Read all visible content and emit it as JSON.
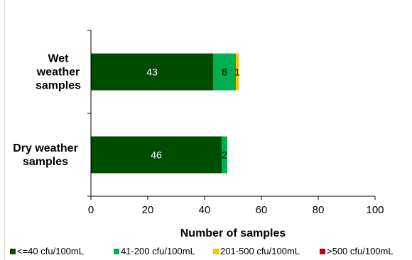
{
  "chart_data": {
    "type": "bar",
    "orientation": "horizontal",
    "stacked": true,
    "categories": [
      "Wet weather samples",
      "Dry weather samples"
    ],
    "category_label_lines": [
      [
        "Wet",
        "weather",
        "samples"
      ],
      [
        "Dry weather",
        "samples"
      ]
    ],
    "series": [
      {
        "name": "<=40 cfu/100mL",
        "color": "#004d00",
        "values": [
          43,
          46
        ],
        "labels": [
          "43",
          "46"
        ],
        "label_color": "#ffffff"
      },
      {
        "name": "41-200 cfu/100mL",
        "color": "#00b050",
        "values": [
          8,
          2
        ],
        "labels": [
          "8",
          "2"
        ],
        "label_color": "#000000"
      },
      {
        "name": "201-500 cfu/100mL",
        "color": "#ffc000",
        "values": [
          1,
          0
        ],
        "labels": [
          "1",
          ""
        ],
        "label_color": "#000000"
      },
      {
        "name": ">500 cfu/100mL",
        "color": "#c00000",
        "values": [
          0,
          0
        ],
        "labels": [
          "",
          ""
        ],
        "label_color": "#ffffff"
      }
    ],
    "xlabel": "Number of samples",
    "ylabel": "",
    "xlim": [
      0,
      100
    ],
    "xticks": [
      0,
      20,
      40,
      60,
      80,
      100
    ],
    "grid": false,
    "legend_position": "bottom"
  }
}
